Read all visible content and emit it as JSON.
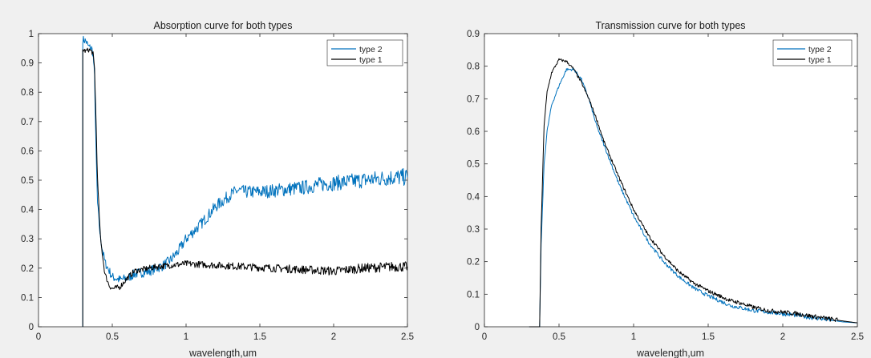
{
  "colors": {
    "figure_bg": "#f0f0f0",
    "axes_bg": "#ffffff",
    "type2": "#0072BD",
    "type1": "#000000"
  },
  "chart_data": [
    {
      "type": "line",
      "title": "Absorption curve for both types",
      "xlabel": "wavelength,um",
      "ylabel": "",
      "xlim": [
        0,
        2.5
      ],
      "ylim": [
        0,
        1
      ],
      "xticks": [
        0,
        0.5,
        1,
        1.5,
        2,
        2.5
      ],
      "xtick_labels": [
        "0",
        "0.5",
        "1",
        "1.5",
        "2",
        "2.5"
      ],
      "yticks": [
        0,
        0.1,
        0.2,
        0.3,
        0.4,
        0.5,
        0.6,
        0.7,
        0.8,
        0.9,
        1
      ],
      "ytick_labels": [
        "0",
        "0.1",
        "0.2",
        "0.3",
        "0.4",
        "0.5",
        "0.6",
        "0.7",
        "0.8",
        "0.9",
        "1"
      ],
      "grid": false,
      "legend": "top-right",
      "series": [
        {
          "name": "type 2",
          "color": "#0072BD",
          "noise": 0.012,
          "points": [
            [
              0.3,
              0.0
            ],
            [
              0.3,
              0.98
            ],
            [
              0.32,
              0.975
            ],
            [
              0.34,
              0.955
            ],
            [
              0.36,
              0.95
            ],
            [
              0.37,
              0.93
            ],
            [
              0.38,
              0.85
            ],
            [
              0.39,
              0.6
            ],
            [
              0.4,
              0.42
            ],
            [
              0.42,
              0.3
            ],
            [
              0.45,
              0.22
            ],
            [
              0.5,
              0.17
            ],
            [
              0.55,
              0.16
            ],
            [
              0.6,
              0.165
            ],
            [
              0.65,
              0.18
            ],
            [
              0.7,
              0.185
            ],
            [
              0.75,
              0.19
            ],
            [
              0.8,
              0.2
            ],
            [
              0.85,
              0.21
            ],
            [
              0.9,
              0.23
            ],
            [
              0.95,
              0.26
            ],
            [
              1.0,
              0.3
            ],
            [
              1.1,
              0.35
            ],
            [
              1.2,
              0.41
            ],
            [
              1.3,
              0.45
            ],
            [
              1.35,
              0.465
            ],
            [
              1.4,
              0.46
            ],
            [
              1.5,
              0.46
            ],
            [
              1.6,
              0.465
            ],
            [
              1.7,
              0.47
            ],
            [
              1.8,
              0.475
            ],
            [
              1.9,
              0.485
            ],
            [
              2.0,
              0.49
            ],
            [
              2.1,
              0.495
            ],
            [
              2.2,
              0.5
            ],
            [
              2.3,
              0.505
            ],
            [
              2.4,
              0.51
            ],
            [
              2.5,
              0.51
            ]
          ]
        },
        {
          "name": "type 1",
          "color": "#000000",
          "noise": 0.007,
          "points": [
            [
              0.3,
              0.0
            ],
            [
              0.3,
              0.945
            ],
            [
              0.32,
              0.94
            ],
            [
              0.34,
              0.945
            ],
            [
              0.36,
              0.94
            ],
            [
              0.37,
              0.93
            ],
            [
              0.38,
              0.88
            ],
            [
              0.39,
              0.7
            ],
            [
              0.4,
              0.5
            ],
            [
              0.42,
              0.3
            ],
            [
              0.45,
              0.18
            ],
            [
              0.48,
              0.14
            ],
            [
              0.5,
              0.13
            ],
            [
              0.55,
              0.135
            ],
            [
              0.6,
              0.165
            ],
            [
              0.65,
              0.19
            ],
            [
              0.7,
              0.195
            ],
            [
              0.75,
              0.2
            ],
            [
              0.8,
              0.205
            ],
            [
              0.9,
              0.21
            ],
            [
              1.0,
              0.215
            ],
            [
              1.2,
              0.21
            ],
            [
              1.4,
              0.205
            ],
            [
              1.6,
              0.2
            ],
            [
              1.8,
              0.195
            ],
            [
              2.0,
              0.19
            ],
            [
              2.2,
              0.2
            ],
            [
              2.4,
              0.205
            ],
            [
              2.5,
              0.205
            ]
          ]
        }
      ]
    },
    {
      "type": "line",
      "title": "Transmission curve for both types",
      "xlabel": "wavelength,um",
      "ylabel": "",
      "xlim": [
        0,
        2.5
      ],
      "ylim": [
        0,
        0.9
      ],
      "xticks": [
        0,
        0.5,
        1,
        1.5,
        2,
        2.5
      ],
      "xtick_labels": [
        "0",
        "0.5",
        "1",
        "1.5",
        "2",
        "2.5"
      ],
      "yticks": [
        0,
        0.1,
        0.2,
        0.3,
        0.4,
        0.5,
        0.6,
        0.7,
        0.8,
        0.9
      ],
      "ytick_labels": [
        "0",
        "0.1",
        "0.2",
        "0.3",
        "0.4",
        "0.5",
        "0.6",
        "0.7",
        "0.8",
        "0.9"
      ],
      "grid": false,
      "legend": "top-right",
      "series": [
        {
          "name": "type 2",
          "color": "#0072BD",
          "noise": 0.003,
          "points": [
            [
              0.3,
              0.0
            ],
            [
              0.37,
              0.0
            ],
            [
              0.38,
              0.25
            ],
            [
              0.4,
              0.5
            ],
            [
              0.42,
              0.6
            ],
            [
              0.45,
              0.68
            ],
            [
              0.5,
              0.74
            ],
            [
              0.55,
              0.79
            ],
            [
              0.6,
              0.79
            ],
            [
              0.65,
              0.76
            ],
            [
              0.7,
              0.7
            ],
            [
              0.75,
              0.62
            ],
            [
              0.8,
              0.56
            ],
            [
              0.9,
              0.44
            ],
            [
              1.0,
              0.34
            ],
            [
              1.1,
              0.26
            ],
            [
              1.2,
              0.2
            ],
            [
              1.3,
              0.155
            ],
            [
              1.4,
              0.12
            ],
            [
              1.5,
              0.095
            ],
            [
              1.6,
              0.075
            ],
            [
              1.65,
              0.065
            ],
            [
              1.7,
              0.06
            ],
            [
              1.8,
              0.05
            ],
            [
              1.9,
              0.045
            ],
            [
              2.0,
              0.04
            ],
            [
              2.1,
              0.035
            ],
            [
              2.2,
              0.028
            ],
            [
              2.3,
              0.022
            ],
            [
              2.4,
              0.015
            ],
            [
              2.5,
              0.012
            ]
          ]
        },
        {
          "name": "type 1",
          "color": "#000000",
          "noise": 0.003,
          "points": [
            [
              0.3,
              0.0
            ],
            [
              0.37,
              0.0
            ],
            [
              0.38,
              0.3
            ],
            [
              0.4,
              0.62
            ],
            [
              0.42,
              0.72
            ],
            [
              0.45,
              0.78
            ],
            [
              0.5,
              0.82
            ],
            [
              0.55,
              0.815
            ],
            [
              0.6,
              0.79
            ],
            [
              0.65,
              0.75
            ],
            [
              0.7,
              0.7
            ],
            [
              0.75,
              0.64
            ],
            [
              0.8,
              0.57
            ],
            [
              0.9,
              0.46
            ],
            [
              1.0,
              0.36
            ],
            [
              1.1,
              0.28
            ],
            [
              1.2,
              0.22
            ],
            [
              1.3,
              0.17
            ],
            [
              1.4,
              0.135
            ],
            [
              1.5,
              0.11
            ],
            [
              1.6,
              0.09
            ],
            [
              1.65,
              0.08
            ],
            [
              1.7,
              0.075
            ],
            [
              1.8,
              0.06
            ],
            [
              1.9,
              0.05
            ],
            [
              2.0,
              0.045
            ],
            [
              2.1,
              0.04
            ],
            [
              2.2,
              0.032
            ],
            [
              2.3,
              0.025
            ],
            [
              2.4,
              0.018
            ],
            [
              2.5,
              0.012
            ]
          ]
        }
      ]
    }
  ]
}
